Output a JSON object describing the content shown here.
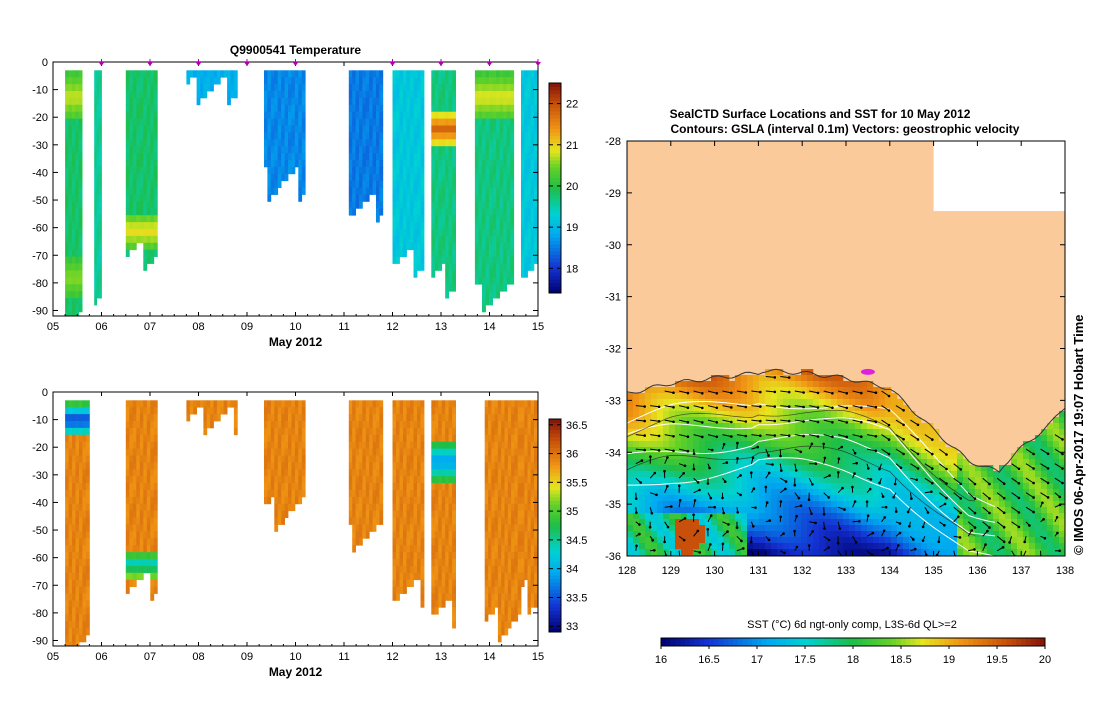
{
  "chart_data": [
    {
      "type": "heatmap",
      "title": "Q9900541  Temperature",
      "variable": "temperature",
      "xlabel": "May 2012",
      "x_ticks": [
        "05",
        "06",
        "07",
        "08",
        "09",
        "10",
        "11",
        "12",
        "13",
        "14",
        "15"
      ],
      "xlim": [
        5,
        15
      ],
      "y_ticks": [
        "0",
        "-10",
        "-20",
        "-30",
        "-40",
        "-50",
        "-60",
        "-70",
        "-80",
        "-90"
      ],
      "ylim": [
        -92,
        0
      ],
      "profile_markers_day": [
        6.0,
        7.0,
        8.0,
        9.0,
        10.0,
        12.0,
        13.0,
        14.0,
        15.0
      ],
      "colorbar": {
        "ticks": [
          "18",
          "19",
          "20",
          "21",
          "22"
        ],
        "range": [
          17.4,
          22.5
        ]
      },
      "profiles": [
        {
          "x0": 5.25,
          "x1": 5.6,
          "depth": -90,
          "value": 19.8,
          "anomalies": [
            [
              -3,
              -20,
              20.8
            ],
            [
              -70,
              -84,
              20.6
            ]
          ]
        },
        {
          "x0": 5.85,
          "x1": 6.0,
          "depth": -84,
          "value": 19.6,
          "anomalies": []
        },
        {
          "x0": 6.5,
          "x1": 7.15,
          "depth": -69,
          "value": 19.8,
          "anomalies": [
            [
              -54,
              -66,
              21.0
            ]
          ]
        },
        {
          "x0": 7.75,
          "x1": 8.8,
          "depth": -9,
          "value": 18.9,
          "anomalies": []
        },
        {
          "x0": 9.35,
          "x1": 10.2,
          "depth": -43,
          "value": 18.6,
          "anomalies": []
        },
        {
          "x0": 11.1,
          "x1": 11.8,
          "depth": -51,
          "value": 18.5,
          "anomalies": []
        },
        {
          "x0": 12.0,
          "x1": 12.65,
          "depth": -71,
          "value": 19.2,
          "anomalies": []
        },
        {
          "x0": 12.8,
          "x1": 13.3,
          "depth": -78,
          "value": 19.7,
          "anomalies": [
            [
              -16,
              -30,
              21.8
            ]
          ]
        },
        {
          "x0": 13.7,
          "x1": 14.5,
          "depth": -84,
          "value": 19.7,
          "anomalies": [
            [
              -3,
              -20,
              20.9
            ]
          ]
        },
        {
          "x0": 14.65,
          "x1": 15.05,
          "depth": -72,
          "value": 19.2,
          "anomalies": []
        }
      ]
    },
    {
      "type": "heatmap",
      "title": "",
      "variable": "salinity",
      "xlabel": "May 2012",
      "x_ticks": [
        "05",
        "06",
        "07",
        "08",
        "09",
        "10",
        "11",
        "12",
        "13",
        "14",
        "15"
      ],
      "xlim": [
        5,
        15
      ],
      "y_ticks": [
        "0",
        "-10",
        "-20",
        "-30",
        "-40",
        "-50",
        "-60",
        "-70",
        "-80",
        "-90"
      ],
      "ylim": [
        -92,
        0
      ],
      "colorbar": {
        "ticks": [
          "33",
          "33.5",
          "34",
          "34.5",
          "35",
          "35.5",
          "36",
          "36.5"
        ],
        "range": [
          32.9,
          36.6
        ]
      },
      "profiles": [
        {
          "x0": 5.25,
          "x1": 5.75,
          "depth": -90,
          "value": 35.9,
          "anomalies": [
            [
              -3,
              -15,
              33.3
            ]
          ]
        },
        {
          "x0": 6.5,
          "x1": 7.15,
          "depth": -69,
          "value": 35.9,
          "anomalies": [
            [
              -56,
              -66,
              34.3
            ]
          ]
        },
        {
          "x0": 7.75,
          "x1": 8.8,
          "depth": -9,
          "value": 35.9,
          "anomalies": []
        },
        {
          "x0": 9.35,
          "x1": 10.2,
          "depth": -43,
          "value": 35.9,
          "anomalies": []
        },
        {
          "x0": 11.1,
          "x1": 11.8,
          "depth": -51,
          "value": 35.9,
          "anomalies": []
        },
        {
          "x0": 12.0,
          "x1": 12.65,
          "depth": -71,
          "value": 35.9,
          "anomalies": []
        },
        {
          "x0": 12.8,
          "x1": 13.3,
          "depth": -79,
          "value": 35.9,
          "anomalies": [
            [
              -16,
              -32,
              33.8
            ]
          ]
        },
        {
          "x0": 13.9,
          "x1": 14.65,
          "depth": -83,
          "value": 35.9,
          "anomalies": []
        },
        {
          "x0": 14.65,
          "x1": 15.05,
          "depth": -73,
          "value": 35.9,
          "anomalies": []
        }
      ]
    },
    {
      "type": "heatmap",
      "title_line1": "SealCTD Surface Locations and SST for 10 May 2012",
      "title_line2": "Contours: GSLA (interval 0.1m)  Vectors: geostrophic velocity",
      "x_ticks": [
        "128",
        "129",
        "130",
        "131",
        "132",
        "133",
        "134",
        "135",
        "136",
        "137",
        "138"
      ],
      "xlim": [
        128,
        138
      ],
      "y_ticks": [
        "-28",
        "-29",
        "-30",
        "-31",
        "-32",
        "-33",
        "-34",
        "-35",
        "-36"
      ],
      "ylim": [
        -36,
        -28
      ],
      "colorbar": {
        "label": "SST (°C) 6d ngt-only comp, L3S-6d QL>=2",
        "ticks": [
          "16",
          "16.5",
          "17",
          "17.5",
          "18",
          "18.5",
          "19",
          "19.5",
          "20"
        ],
        "range": [
          16,
          20
        ]
      },
      "seal_location": {
        "lon": 133.5,
        "lat": -32.45
      }
    }
  ],
  "side_credit": "© IMOS 06-Apr-2017 19:07 Hobart Time"
}
